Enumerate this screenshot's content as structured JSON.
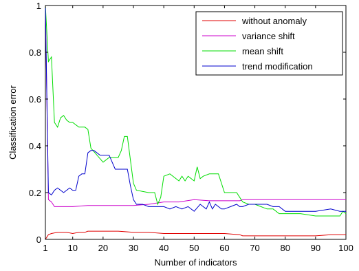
{
  "chart_data": {
    "type": "line",
    "title": "",
    "xlabel": "Number of indicators",
    "ylabel": "Classification error",
    "xlim": [
      1,
      100
    ],
    "ylim": [
      0,
      1
    ],
    "xticks": [
      1,
      10,
      20,
      30,
      40,
      50,
      60,
      70,
      80,
      90,
      100
    ],
    "yticks": [
      0,
      0.2,
      0.4,
      0.6,
      0.8,
      1
    ],
    "ytick_labels": [
      "0",
      "0.2",
      "0.4",
      "0.6",
      "0.8",
      "1"
    ],
    "grid": false,
    "legend_position": "top-right",
    "series": [
      {
        "name": "without anomaly",
        "color": "#e00000",
        "x": [
          1,
          2,
          3,
          5,
          8,
          10,
          12,
          14,
          15,
          16,
          20,
          25,
          30,
          35,
          40,
          45,
          50,
          55,
          60,
          65,
          66,
          70,
          75,
          80,
          85,
          90,
          95,
          98,
          100
        ],
        "y": [
          0.0,
          0.02,
          0.025,
          0.03,
          0.03,
          0.025,
          0.03,
          0.03,
          0.035,
          0.035,
          0.035,
          0.035,
          0.03,
          0.03,
          0.025,
          0.025,
          0.025,
          0.025,
          0.025,
          0.02,
          0.015,
          0.015,
          0.015,
          0.015,
          0.015,
          0.015,
          0.02,
          0.02,
          0.02
        ]
      },
      {
        "name": "variance shift",
        "color": "#cc00cc",
        "x": [
          1,
          2,
          3,
          4,
          5,
          10,
          15,
          20,
          25,
          30,
          35,
          40,
          45,
          50,
          55,
          60,
          65,
          66,
          70,
          80,
          90,
          100
        ],
        "y": [
          1.0,
          0.17,
          0.16,
          0.14,
          0.14,
          0.14,
          0.145,
          0.145,
          0.145,
          0.145,
          0.15,
          0.16,
          0.16,
          0.17,
          0.165,
          0.165,
          0.165,
          0.17,
          0.17,
          0.17,
          0.17,
          0.17
        ]
      },
      {
        "name": "mean shift",
        "color": "#00dd00",
        "x": [
          1,
          2,
          3,
          4,
          5,
          6,
          7,
          8,
          9,
          10,
          12,
          14,
          15,
          16,
          18,
          20,
          22,
          24,
          25,
          26,
          27,
          28,
          29,
          30,
          31,
          35,
          37,
          38,
          39,
          40,
          42,
          44,
          45,
          46,
          47,
          48,
          50,
          51,
          52,
          53,
          55,
          57,
          58,
          59,
          60,
          62,
          64,
          65,
          66,
          68,
          70,
          72,
          74,
          76,
          78,
          80,
          85,
          90,
          95,
          98,
          99,
          100
        ],
        "y": [
          1.0,
          0.76,
          0.78,
          0.5,
          0.48,
          0.52,
          0.53,
          0.51,
          0.5,
          0.5,
          0.48,
          0.48,
          0.47,
          0.39,
          0.36,
          0.33,
          0.35,
          0.35,
          0.35,
          0.38,
          0.44,
          0.44,
          0.34,
          0.24,
          0.21,
          0.2,
          0.2,
          0.15,
          0.18,
          0.27,
          0.28,
          0.26,
          0.25,
          0.27,
          0.25,
          0.27,
          0.25,
          0.31,
          0.26,
          0.27,
          0.28,
          0.28,
          0.28,
          0.24,
          0.2,
          0.2,
          0.2,
          0.18,
          0.16,
          0.15,
          0.15,
          0.14,
          0.13,
          0.13,
          0.11,
          0.11,
          0.11,
          0.1,
          0.1,
          0.1,
          0.12,
          0.11
        ]
      },
      {
        "name": "trend modification",
        "color": "#0000cc",
        "x": [
          1,
          2,
          3,
          4,
          5,
          7,
          9,
          10,
          11,
          12,
          13,
          14,
          15,
          16,
          17,
          18,
          19,
          20,
          22,
          24,
          26,
          28,
          29,
          30,
          31,
          33,
          35,
          38,
          40,
          42,
          44,
          46,
          48,
          50,
          52,
          54,
          55,
          56,
          57,
          58,
          59,
          60,
          62,
          64,
          65,
          66,
          68,
          70,
          72,
          74,
          76,
          78,
          80,
          85,
          90,
          95,
          98,
          100
        ],
        "y": [
          1.0,
          0.2,
          0.19,
          0.21,
          0.22,
          0.2,
          0.22,
          0.21,
          0.21,
          0.27,
          0.28,
          0.28,
          0.37,
          0.38,
          0.38,
          0.37,
          0.36,
          0.36,
          0.36,
          0.3,
          0.3,
          0.3,
          0.23,
          0.17,
          0.15,
          0.15,
          0.14,
          0.14,
          0.14,
          0.13,
          0.14,
          0.13,
          0.14,
          0.12,
          0.15,
          0.13,
          0.16,
          0.13,
          0.15,
          0.14,
          0.13,
          0.13,
          0.14,
          0.15,
          0.14,
          0.14,
          0.15,
          0.15,
          0.15,
          0.15,
          0.14,
          0.14,
          0.12,
          0.12,
          0.12,
          0.13,
          0.12,
          0.12
        ]
      }
    ]
  }
}
